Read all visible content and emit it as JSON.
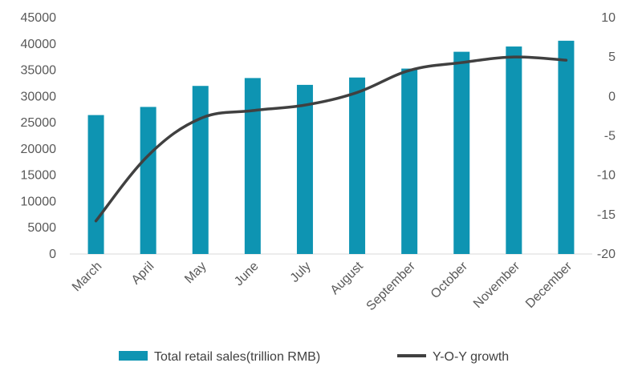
{
  "chart_data": {
    "type": "bar",
    "categories": [
      "March",
      "April",
      "May",
      "June",
      "July",
      "August",
      "September",
      "October",
      "November",
      "December"
    ],
    "series": [
      {
        "name": "Total retail sales(trillion RMB)",
        "type": "bar",
        "axis": "left",
        "values": [
          26450,
          28000,
          32000,
          33500,
          32200,
          33600,
          35300,
          38500,
          39500,
          40600
        ],
        "color": "#0E94B2"
      },
      {
        "name": "Y-O-Y growth",
        "type": "line",
        "axis": "right",
        "values": [
          -15.8,
          -7.5,
          -2.8,
          -1.8,
          -1.1,
          0.5,
          3.3,
          4.3,
          5.0,
          4.6
        ],
        "color": "#404040"
      }
    ],
    "y_left": {
      "min": 0,
      "max": 45000,
      "step": 5000,
      "ticks": [
        "0",
        "5000",
        "10000",
        "15000",
        "20000",
        "25000",
        "30000",
        "35000",
        "40000",
        "45000"
      ]
    },
    "y_right": {
      "min": -20,
      "max": 10,
      "step": 5,
      "ticks": [
        "-20",
        "-15",
        "-10",
        "-5",
        "0",
        "5",
        "10"
      ]
    },
    "legend": {
      "position": "bottom"
    },
    "grid": false,
    "title": "",
    "xlabel": "",
    "ylabel": ""
  }
}
